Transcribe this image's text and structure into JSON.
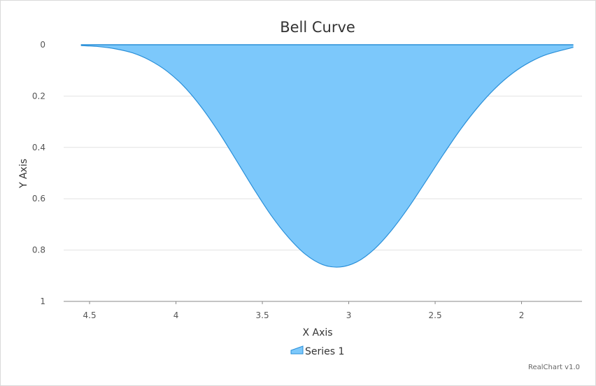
{
  "chart_data": {
    "type": "area",
    "title": "Bell Curve",
    "xlabel": "X Axis",
    "ylabel": "Y Axis",
    "x_reversed": true,
    "y_reversed": true,
    "xlim": [
      1.65,
      4.65
    ],
    "ylim": [
      0,
      1
    ],
    "x_ticks": [
      "4.5",
      "4",
      "3.5",
      "3",
      "2.5",
      "2"
    ],
    "x_tick_values": [
      4.5,
      4,
      3.5,
      3,
      2.5,
      2
    ],
    "y_ticks": [
      "0",
      "0.2",
      "0.4",
      "0.6",
      "0.8",
      "1"
    ],
    "y_tick_values": [
      0,
      0.2,
      0.4,
      0.6,
      0.8,
      1
    ],
    "grid": true,
    "legend_position": "bottom",
    "series": [
      {
        "name": "Series 1",
        "color": "#7cc8fb",
        "line_color": "#2a8fd8",
        "x": [
          4.55,
          4.45,
          4.35,
          4.25,
          4.15,
          4.05,
          3.95,
          3.85,
          3.75,
          3.65,
          3.55,
          3.45,
          3.35,
          3.25,
          3.15,
          3.05,
          2.95,
          2.85,
          2.75,
          2.65,
          2.55,
          2.45,
          2.35,
          2.25,
          2.15,
          2.05,
          1.95,
          1.85,
          1.7
        ],
        "y": [
          0.003,
          0.007,
          0.016,
          0.032,
          0.061,
          0.104,
          0.165,
          0.246,
          0.343,
          0.451,
          0.561,
          0.664,
          0.75,
          0.817,
          0.857,
          0.866,
          0.845,
          0.795,
          0.721,
          0.63,
          0.528,
          0.425,
          0.327,
          0.241,
          0.168,
          0.11,
          0.067,
          0.037,
          0.01
        ]
      }
    ],
    "credit": "RealChart v1.0"
  }
}
